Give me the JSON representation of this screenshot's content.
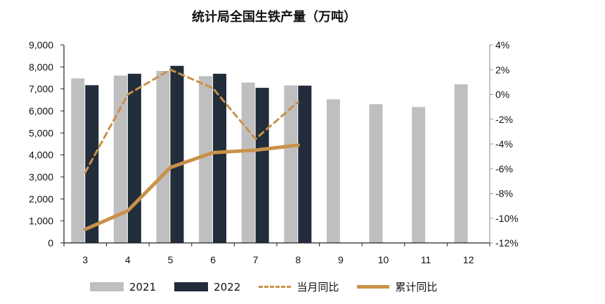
{
  "chart_data": {
    "type": "bar+line",
    "title": "统计局全国生铁产量（万吨）",
    "categories": [
      "3",
      "4",
      "5",
      "6",
      "7",
      "8",
      "9",
      "10",
      "11",
      "12"
    ],
    "y_left": {
      "range": [
        0,
        9000
      ],
      "ticks": [
        "0",
        "1,000",
        "2,000",
        "3,000",
        "4,000",
        "5,000",
        "6,000",
        "7,000",
        "8,000",
        "9,000"
      ]
    },
    "y_right": {
      "range": [
        -12,
        4
      ],
      "ticks": [
        "-12%",
        "-10%",
        "-8%",
        "-6%",
        "-4%",
        "-2%",
        "0%",
        "2%",
        "4%"
      ]
    },
    "grid": false,
    "legend_position": "bottom",
    "series": [
      {
        "name": "2021",
        "type": "bar",
        "axis": "left",
        "color": "#bfbfbf",
        "values": [
          7480,
          7610,
          7820,
          7580,
          7290,
          7160,
          6530,
          6310,
          6180,
          7210
        ]
      },
      {
        "name": "2022",
        "type": "bar",
        "axis": "left",
        "color": "#222d3b",
        "values": [
          7170,
          7690,
          8050,
          7690,
          7050,
          7150,
          null,
          null,
          null,
          null
        ]
      },
      {
        "name": "当月同比",
        "type": "line",
        "style": "dashed",
        "axis": "right",
        "color": "#c9914a",
        "values": [
          -6.3,
          0.0,
          2.0,
          0.5,
          -3.6,
          -0.6,
          null,
          null,
          null,
          null
        ]
      },
      {
        "name": "累计同比",
        "type": "line",
        "style": "solid",
        "axis": "right",
        "color": "#c9914a",
        "values": [
          -10.9,
          -9.4,
          -5.9,
          -4.7,
          -4.5,
          -4.1,
          null,
          null,
          null,
          null
        ]
      }
    ]
  }
}
